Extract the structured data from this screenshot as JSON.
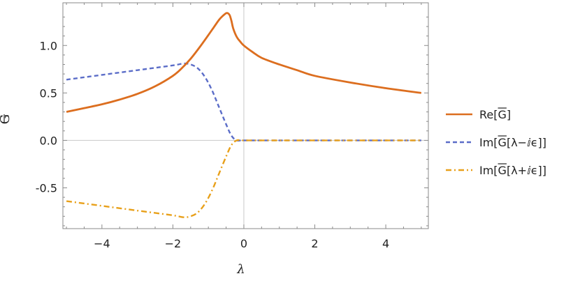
{
  "chart_data": {
    "type": "line",
    "xlabel": "λ",
    "ylabel": "G",
    "xlim": [
      -5.1,
      5.2
    ],
    "ylim": [
      -0.93,
      1.45
    ],
    "x_ticks": [
      -4,
      -2,
      0,
      2,
      4
    ],
    "x_tick_labels": [
      "−4",
      "−2",
      "0",
      "2",
      "4"
    ],
    "y_ticks": [
      -0.5,
      0.0,
      0.5,
      1.0
    ],
    "y_tick_labels": [
      "-0.5",
      "0.0",
      "0.5",
      "1.0"
    ],
    "legend_position": "right",
    "series": [
      {
        "name": "Re[G]",
        "legend_prefix": "Re[",
        "legend_g": "G",
        "legend_suffix": "]",
        "color": "#DC6E1F",
        "dash": "solid",
        "x": [
          -5.0,
          -4.5,
          -4.0,
          -3.5,
          -3.0,
          -2.5,
          -2.0,
          -1.75,
          -1.5,
          -1.25,
          -1.0,
          -0.85,
          -0.7,
          -0.6,
          -0.5,
          -0.45,
          -0.4,
          -0.35,
          -0.3,
          -0.2,
          -0.1,
          0.0,
          0.25,
          0.5,
          1.0,
          1.5,
          2.0,
          3.0,
          4.0,
          5.0
        ],
        "y": [
          0.3,
          0.34,
          0.38,
          0.43,
          0.49,
          0.57,
          0.68,
          0.76,
          0.86,
          0.98,
          1.11,
          1.19,
          1.27,
          1.31,
          1.34,
          1.34,
          1.32,
          1.26,
          1.18,
          1.09,
          1.04,
          1.0,
          0.93,
          0.87,
          0.8,
          0.74,
          0.68,
          0.61,
          0.55,
          0.5
        ]
      },
      {
        "name": "Im[G[λ−iε]]",
        "legend_prefix": "Im[",
        "legend_g": "G",
        "legend_suffix": "[λ−ⅈϵ]]",
        "color": "#5B6DC8",
        "dash": "dashed",
        "x": [
          -5.0,
          -4.0,
          -3.0,
          -2.0,
          -1.7,
          -1.5,
          -1.3,
          -1.1,
          -0.9,
          -0.7,
          -0.5,
          -0.35,
          -0.2,
          0.0,
          1.0,
          2.0,
          3.0,
          4.0,
          5.0
        ],
        "y": [
          0.64,
          0.69,
          0.74,
          0.79,
          0.81,
          0.8,
          0.76,
          0.67,
          0.53,
          0.35,
          0.17,
          0.05,
          0.0,
          0.0,
          0.0,
          0.0,
          0.0,
          0.0,
          0.0
        ]
      },
      {
        "name": "Im[G[λ+iε]]",
        "legend_prefix": "Im[",
        "legend_g": "G",
        "legend_suffix": "[λ+ⅈϵ]]",
        "color": "#E8A01A",
        "dash": "dashdot",
        "x": [
          -5.0,
          -4.0,
          -3.0,
          -2.0,
          -1.7,
          -1.5,
          -1.3,
          -1.1,
          -0.9,
          -0.7,
          -0.5,
          -0.35,
          -0.2,
          0.0,
          1.0,
          2.0,
          3.0,
          4.0,
          5.0
        ],
        "y": [
          -0.64,
          -0.69,
          -0.74,
          -0.79,
          -0.81,
          -0.8,
          -0.76,
          -0.67,
          -0.53,
          -0.35,
          -0.17,
          -0.05,
          0.0,
          0.0,
          0.0,
          0.0,
          0.0,
          0.0,
          0.0
        ]
      }
    ]
  }
}
